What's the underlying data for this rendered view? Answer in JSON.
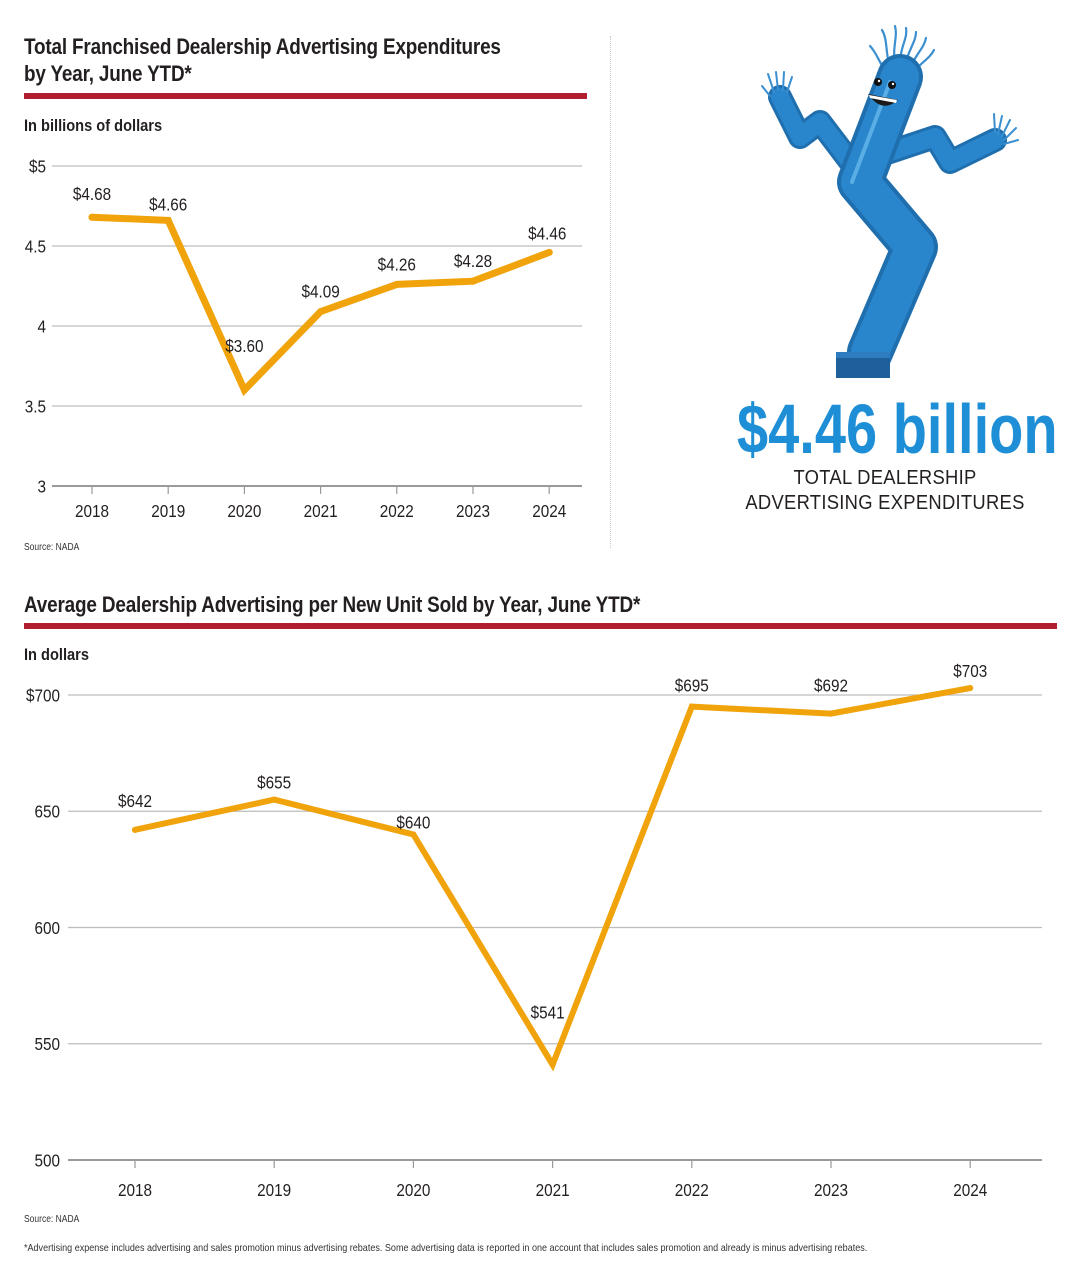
{
  "top_chart": {
    "title_line1": "Total Franchised Dealership Advertising Expenditures",
    "title_line2": "by Year, June YTD*",
    "unit_label": "In billions of dollars",
    "source": "Source: NADA"
  },
  "callout": {
    "illustration": "inflatable-tube-man",
    "headline": "$4.46 billion",
    "caption_line1": "TOTAL DEALERSHIP",
    "caption_line2": "ADVERTISING EXPENDITURES",
    "accent_color": "#1e8fd6"
  },
  "bottom_chart": {
    "title": "Average Dealership Advertising per New Unit Sold by Year, June YTD*",
    "unit_label": "In dollars",
    "source": "Source: NADA"
  },
  "footnote": "*Advertising expense includes advertising and sales promotion minus advertising rebates. Some advertising data is reported in one account that includes sales promotion and already is minus advertising rebates.",
  "colors": {
    "line": "#f0a30a",
    "rule": "#b01e2f",
    "grid": "#bdbdbd"
  },
  "chart_data": [
    {
      "type": "line",
      "title": "Total Franchised Dealership Advertising Expenditures by Year, June YTD*",
      "xlabel": "",
      "ylabel": "In billions of dollars",
      "categories": [
        "2018",
        "2019",
        "2020",
        "2021",
        "2022",
        "2023",
        "2024"
      ],
      "values": [
        4.68,
        4.66,
        3.6,
        4.09,
        4.26,
        4.28,
        4.46
      ],
      "data_labels": [
        "$4.68",
        "$4.66",
        "$3.60",
        "$4.09",
        "$4.26",
        "$4.28",
        "$4.46"
      ],
      "ylim": [
        3,
        5
      ],
      "yticks": [
        3,
        3.5,
        4,
        4.5,
        5
      ],
      "ytick_labels": [
        "3",
        "3.5",
        "4",
        "4.5",
        "$5"
      ],
      "grid": true,
      "legend": "none"
    },
    {
      "type": "line",
      "title": "Average Dealership Advertising per New Unit Sold by Year, June YTD*",
      "xlabel": "",
      "ylabel": "In dollars",
      "categories": [
        "2018",
        "2019",
        "2020",
        "2021",
        "2022",
        "2023",
        "2024"
      ],
      "values": [
        642,
        655,
        640,
        541,
        695,
        692,
        703
      ],
      "data_labels": [
        "$642",
        "$655",
        "$640",
        "$541",
        "$695",
        "$692",
        "$703"
      ],
      "ylim": [
        500,
        700
      ],
      "yticks": [
        500,
        550,
        600,
        650,
        700
      ],
      "ytick_labels": [
        "500",
        "550",
        "600",
        "650",
        "$700"
      ],
      "grid": true,
      "legend": "none"
    }
  ]
}
